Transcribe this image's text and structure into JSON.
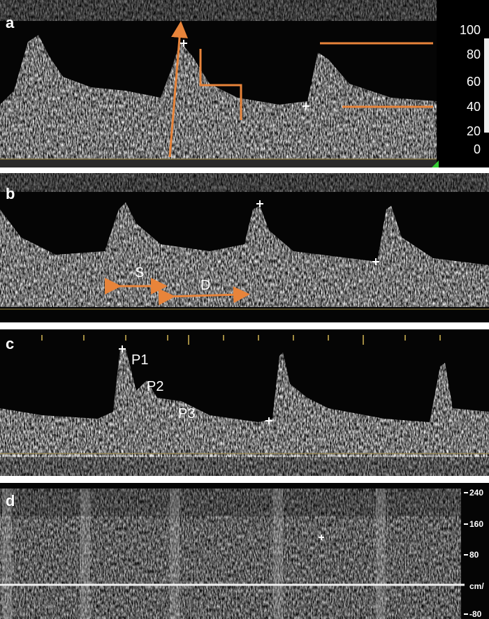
{
  "panels": [
    {
      "label": "a",
      "ticks": [
        "100",
        "80",
        "60",
        "40",
        "20",
        "0"
      ]
    },
    {
      "label": "b",
      "annotations": [
        "S",
        "D"
      ]
    },
    {
      "label": "c",
      "annotations": [
        "P1",
        "P2",
        "P3"
      ]
    },
    {
      "label": "d",
      "ticks": [
        "240",
        "160",
        "80",
        "cm/",
        "-80"
      ]
    }
  ]
}
